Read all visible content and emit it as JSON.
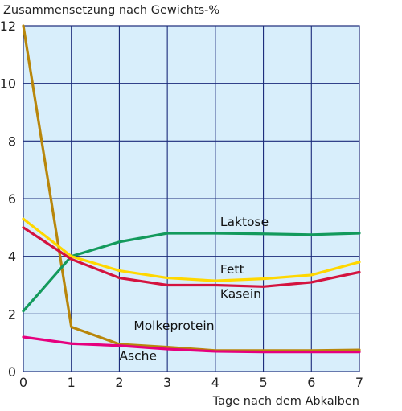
{
  "chart_data": {
    "type": "line",
    "ylabel": "Zusammensetzung nach Gewichts-%",
    "xlabel": "Tage nach dem Abkalben",
    "x": [
      0,
      1,
      2,
      3,
      4,
      5,
      6,
      7
    ],
    "xticks": [
      "0",
      "1",
      "2",
      "3",
      "4",
      "5",
      "6",
      "7"
    ],
    "yticks": [
      "0",
      "2",
      "4",
      "6",
      "8",
      "10",
      "12"
    ],
    "xlim": [
      0,
      7
    ],
    "ylim": [
      0,
      12
    ],
    "grid": true,
    "series": [
      {
        "name": "Molkeprotein",
        "color": "#b8860b",
        "values": [
          12,
          1.55,
          0.95,
          0.85,
          0.73,
          0.73,
          0.73,
          0.75
        ]
      },
      {
        "name": "Laktose",
        "color": "#139a5c",
        "values": [
          2.1,
          4.0,
          4.5,
          4.8,
          4.8,
          4.78,
          4.75,
          4.8
        ]
      },
      {
        "name": "Fett",
        "color": "#ffd700",
        "values": [
          5.3,
          4.0,
          3.5,
          3.25,
          3.15,
          3.22,
          3.35,
          3.8
        ]
      },
      {
        "name": "Kasein",
        "color": "#d4133f",
        "values": [
          5.0,
          3.9,
          3.25,
          3.0,
          3.0,
          2.95,
          3.1,
          3.45
        ]
      },
      {
        "name": "Asche",
        "color": "#e6007e",
        "values": [
          1.2,
          0.97,
          0.9,
          0.78,
          0.7,
          0.68,
          0.68,
          0.68
        ]
      }
    ],
    "annotations": [
      {
        "series": "Laktose",
        "text": "Laktose",
        "x": 4.1,
        "y": 5.05
      },
      {
        "series": "Fett",
        "text": "Fett",
        "x": 4.1,
        "y": 3.4
      },
      {
        "series": "Kasein",
        "text": "Kasein",
        "x": 4.1,
        "y": 2.55
      },
      {
        "series": "Molkeprotein",
        "text": "Molkeprotein",
        "x": 2.3,
        "y": 1.45
      },
      {
        "series": "Asche",
        "text": "Asche",
        "x": 2.0,
        "y": 0.4
      }
    ]
  }
}
